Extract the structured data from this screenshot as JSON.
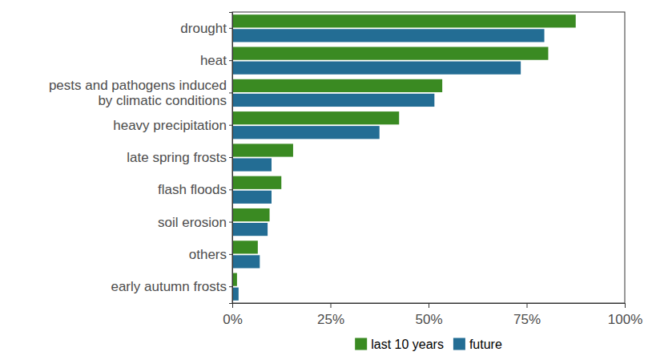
{
  "chart_data": {
    "type": "bar",
    "orientation": "horizontal",
    "categories": [
      "drought",
      "heat",
      "pests and pathogens induced\nby climatic conditions",
      "heavy precipitation",
      "late spring frosts",
      "flash floods",
      "soil erosion",
      "others",
      "early autumn frosts"
    ],
    "series": [
      {
        "name": "last 10 years",
        "color": "#3a8a22",
        "values": [
          87.5,
          80.5,
          53.5,
          42.5,
          15.5,
          12.5,
          9.5,
          6.5,
          1.2
        ]
      },
      {
        "name": "future",
        "color": "#236d94",
        "values": [
          79.5,
          73.5,
          51.5,
          37.5,
          10,
          10,
          9,
          7,
          1.6
        ]
      }
    ],
    "xlim": [
      0,
      100
    ],
    "xticks": [
      {
        "value": 0,
        "label": "0%"
      },
      {
        "value": 25,
        "label": "25%"
      },
      {
        "value": 50,
        "label": "50%"
      },
      {
        "value": 75,
        "label": "75%"
      },
      {
        "value": 100,
        "label": "100%"
      }
    ],
    "grid": false,
    "legend": "bottom"
  }
}
